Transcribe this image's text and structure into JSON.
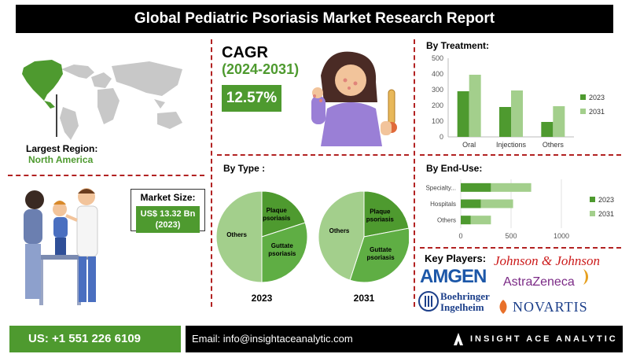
{
  "title": "Global Pediatric Psoriasis Market Research Report",
  "region": {
    "label": "Largest Region:",
    "value": "North America"
  },
  "cagr": {
    "title": "CAGR",
    "years": "(2024-2031)",
    "value": "12.57%"
  },
  "market_size": {
    "label": "Market Size:",
    "value_line1": "US$ 13.32 Bn",
    "value_line2": "(2023)"
  },
  "by_type": {
    "title": "By Type :"
  },
  "key_players": {
    "title": "Key Players:",
    "names": [
      "AMGEN",
      "Johnson & Johnson",
      "AstraZeneca",
      "Boehringer Ingelheim",
      "NOVARTIS"
    ]
  },
  "footer": {
    "phone": "US: +1 551 226 6109",
    "email": "Email: info@insightaceanalytic.com",
    "brand": "INSIGHT ACE ANALYTIC"
  },
  "colors": {
    "dark_green": "#4e9a2f",
    "light_green": "#a3cf8c",
    "accent_red": "#b22222"
  },
  "chart_data": [
    {
      "type": "bar",
      "title": "By Treatment:",
      "categories": [
        "Oral",
        "Injections",
        "Others"
      ],
      "series": [
        {
          "name": "2023",
          "values": [
            290,
            190,
            95
          ]
        },
        {
          "name": "2031",
          "values": [
            395,
            295,
            195
          ]
        }
      ],
      "ylim": [
        0,
        500
      ],
      "yticks": [
        0,
        100,
        200,
        300,
        400,
        500
      ],
      "grid": false,
      "legend": "right"
    },
    {
      "type": "bar",
      "orientation": "horizontal",
      "title": "By End-Use:",
      "categories": [
        "Specialty...",
        "Hospitals",
        "Others"
      ],
      "series": [
        {
          "name": "2023",
          "values": [
            300,
            200,
            100
          ]
        },
        {
          "name": "2031",
          "values": [
            400,
            320,
            200
          ]
        }
      ],
      "xlim": [
        0,
        1000
      ],
      "xticks": [
        0,
        500,
        1000
      ],
      "stacked": true,
      "legend": "right"
    },
    {
      "type": "pie",
      "title": "2023",
      "labels": [
        "Plaque psoriasis",
        "Guttate psoriasis",
        "Others"
      ],
      "values": [
        20,
        30,
        50
      ]
    },
    {
      "type": "pie",
      "title": "2031",
      "labels": [
        "Plaque psoriasis",
        "Guttate psoriasis",
        "Others"
      ],
      "values": [
        22,
        33,
        45
      ]
    }
  ]
}
